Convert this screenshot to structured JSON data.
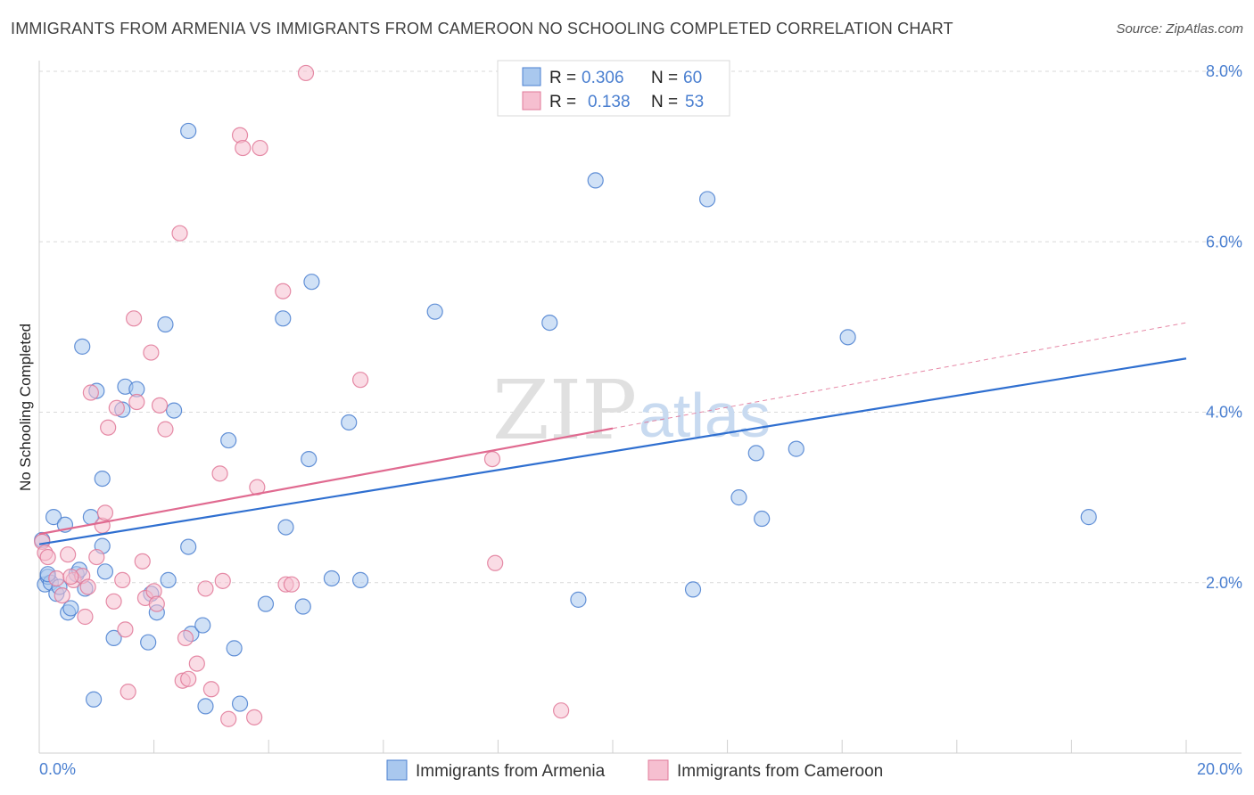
{
  "title": "IMMIGRANTS FROM ARMENIA VS IMMIGRANTS FROM CAMEROON NO SCHOOLING COMPLETED CORRELATION CHART",
  "source": "Source: ZipAtlas.com",
  "watermark": {
    "zip": "ZIP",
    "atlas": "atlas"
  },
  "colors": {
    "armenia_fill": "#a9c8ee",
    "armenia_stroke": "#4a7fd0",
    "armenia_line": "#2f6fd0",
    "cameroon_fill": "#f6bfd0",
    "cameroon_stroke": "#e07898",
    "cameroon_line": "#e06a90",
    "grid": "#d9d9d9",
    "tick_label": "#4a7fd0"
  },
  "chart_data": {
    "type": "scatter",
    "ylabel": "No Schooling Completed",
    "xlim": [
      0,
      20
    ],
    "ylim": [
      0,
      8
    ],
    "x_tick_labels": [
      {
        "value": 0,
        "label": "0.0%"
      },
      {
        "value": 20,
        "label": "20.0%"
      }
    ],
    "y_tick_labels": [
      {
        "value": 2,
        "label": "2.0%"
      },
      {
        "value": 4,
        "label": "4.0%"
      },
      {
        "value": 6,
        "label": "6.0%"
      },
      {
        "value": 8,
        "label": "8.0%"
      }
    ],
    "legend": {
      "rows": [
        {
          "r_label": "R =",
          "r_value": "0.306",
          "n_label": "N =",
          "n_value": "60"
        },
        {
          "r_label": "R =",
          "r_value": "0.138",
          "n_label": "N =",
          "n_value": "53"
        }
      ]
    },
    "series": [
      {
        "name": "Immigrants from Armenia",
        "trend": {
          "x": [
            0,
            20
          ],
          "y": [
            2.45,
            4.63
          ],
          "dashed_from": null
        },
        "points": [
          [
            0.05,
            2.5
          ],
          [
            0.1,
            1.98
          ],
          [
            0.15,
            2.07
          ],
          [
            0.2,
            2.0
          ],
          [
            0.25,
            2.77
          ],
          [
            0.3,
            1.87
          ],
          [
            0.35,
            1.95
          ],
          [
            0.45,
            2.68
          ],
          [
            0.5,
            1.65
          ],
          [
            0.55,
            1.7
          ],
          [
            0.65,
            2.1
          ],
          [
            0.7,
            2.15
          ],
          [
            0.75,
            4.77
          ],
          [
            0.8,
            1.93
          ],
          [
            0.9,
            2.77
          ],
          [
            0.95,
            0.63
          ],
          [
            1.0,
            4.25
          ],
          [
            1.1,
            3.22
          ],
          [
            1.1,
            2.43
          ],
          [
            1.15,
            2.13
          ],
          [
            1.3,
            1.35
          ],
          [
            1.45,
            4.03
          ],
          [
            1.5,
            4.3
          ],
          [
            1.7,
            4.27
          ],
          [
            1.9,
            1.3
          ],
          [
            1.95,
            1.87
          ],
          [
            2.05,
            1.65
          ],
          [
            2.2,
            5.03
          ],
          [
            2.25,
            2.03
          ],
          [
            2.35,
            4.02
          ],
          [
            2.6,
            2.42
          ],
          [
            2.6,
            7.3
          ],
          [
            2.65,
            1.4
          ],
          [
            2.85,
            1.5
          ],
          [
            2.9,
            0.55
          ],
          [
            3.3,
            3.67
          ],
          [
            3.4,
            1.23
          ],
          [
            3.5,
            0.58
          ],
          [
            3.95,
            1.75
          ],
          [
            4.25,
            5.1
          ],
          [
            4.3,
            2.65
          ],
          [
            4.6,
            1.72
          ],
          [
            4.7,
            3.45
          ],
          [
            4.75,
            5.53
          ],
          [
            5.1,
            2.05
          ],
          [
            5.4,
            3.88
          ],
          [
            5.6,
            2.03
          ],
          [
            6.9,
            5.18
          ],
          [
            8.9,
            5.05
          ],
          [
            9.4,
            1.8
          ],
          [
            9.7,
            6.72
          ],
          [
            11.4,
            1.92
          ],
          [
            11.65,
            6.5
          ],
          [
            12.2,
            3.0
          ],
          [
            12.5,
            3.52
          ],
          [
            12.6,
            2.75
          ],
          [
            13.2,
            3.57
          ],
          [
            14.1,
            4.88
          ],
          [
            18.3,
            2.77
          ],
          [
            0.15,
            2.1
          ]
        ]
      },
      {
        "name": "Immigrants from Cameroon",
        "trend": {
          "x": [
            0,
            20
          ],
          "y": [
            2.57,
            5.05
          ],
          "dashed_from": 10
        },
        "points": [
          [
            0.05,
            2.48
          ],
          [
            0.1,
            2.35
          ],
          [
            0.15,
            2.3
          ],
          [
            0.3,
            2.05
          ],
          [
            0.4,
            1.85
          ],
          [
            0.5,
            2.33
          ],
          [
            0.6,
            2.03
          ],
          [
            0.75,
            2.08
          ],
          [
            0.8,
            1.6
          ],
          [
            0.85,
            1.95
          ],
          [
            0.9,
            4.23
          ],
          [
            1.0,
            2.3
          ],
          [
            1.1,
            2.67
          ],
          [
            1.15,
            2.82
          ],
          [
            1.2,
            3.82
          ],
          [
            1.3,
            1.78
          ],
          [
            1.35,
            4.05
          ],
          [
            1.45,
            2.03
          ],
          [
            1.5,
            1.45
          ],
          [
            1.55,
            0.72
          ],
          [
            1.65,
            5.1
          ],
          [
            1.7,
            4.12
          ],
          [
            1.8,
            2.25
          ],
          [
            1.85,
            1.82
          ],
          [
            1.95,
            4.7
          ],
          [
            2.0,
            1.9
          ],
          [
            2.05,
            1.75
          ],
          [
            2.1,
            4.08
          ],
          [
            2.2,
            3.8
          ],
          [
            2.45,
            6.1
          ],
          [
            2.5,
            0.85
          ],
          [
            2.55,
            1.35
          ],
          [
            2.6,
            0.87
          ],
          [
            2.75,
            1.05
          ],
          [
            2.9,
            1.93
          ],
          [
            3.0,
            0.75
          ],
          [
            3.15,
            3.28
          ],
          [
            3.2,
            2.02
          ],
          [
            3.3,
            0.4
          ],
          [
            3.5,
            7.25
          ],
          [
            3.55,
            7.1
          ],
          [
            3.75,
            0.42
          ],
          [
            3.8,
            3.12
          ],
          [
            3.85,
            7.1
          ],
          [
            4.25,
            5.42
          ],
          [
            4.3,
            1.98
          ],
          [
            4.4,
            1.98
          ],
          [
            4.65,
            7.98
          ],
          [
            5.6,
            4.38
          ],
          [
            7.9,
            3.45
          ],
          [
            7.95,
            2.23
          ],
          [
            9.1,
            0.5
          ],
          [
            0.55,
            2.07
          ]
        ]
      }
    ]
  },
  "bottom_legend": [
    {
      "label": "Immigrants from Armenia"
    },
    {
      "label": "Immigrants from Cameroon"
    }
  ]
}
